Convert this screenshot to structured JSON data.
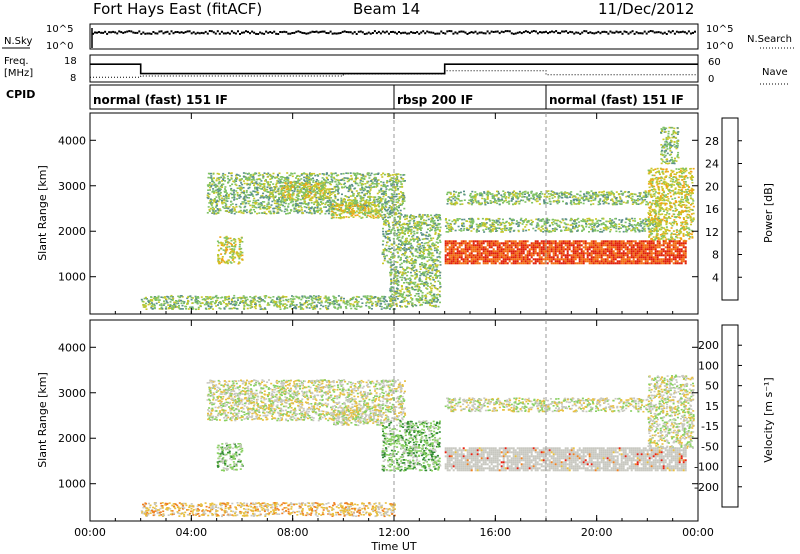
{
  "header": {
    "title": "Fort Hays East (fitACF)",
    "beam": "Beam 14",
    "date": "11/Dec/2012"
  },
  "status_panel": {
    "left_labels": {
      "nsky": "N.Sky",
      "freq_line1": "Freq.",
      "freq_line2": "[MHz]",
      "cpid": "CPID"
    },
    "right_labels": {
      "nsearch": "N.Search",
      "nave": "Nave"
    },
    "nsky_ticks": [
      "10^5",
      "10^0"
    ],
    "nsearch_ticks": [
      "10^5",
      "10^0"
    ],
    "freq_ticks": [
      "18",
      "8"
    ],
    "nave_ticks": [
      "60",
      "0"
    ],
    "cpid_segments": [
      {
        "label": "normal (fast) 151 IF",
        "start_hour": 0,
        "end_hour": 12
      },
      {
        "label": "rbsp 200 IF",
        "start_hour": 12,
        "end_hour": 18
      },
      {
        "label": "normal (fast) 151 IF",
        "start_hour": 18,
        "end_hour": 24
      }
    ],
    "frequency_MHz": [
      {
        "start_hour": 0,
        "end_hour": 2,
        "value": 15
      },
      {
        "start_hour": 2,
        "end_hour": 14,
        "value": 10.5
      },
      {
        "start_hour": 14,
        "end_hour": 24,
        "value": 15
      }
    ],
    "nave": [
      {
        "start_hour": 0,
        "end_hour": 2,
        "value": 12
      },
      {
        "start_hour": 2,
        "end_hour": 10,
        "value": 15
      },
      {
        "start_hour": 10,
        "end_hour": 14,
        "value": 20
      },
      {
        "start_hour": 14,
        "end_hour": 18,
        "value": 28
      },
      {
        "start_hour": 18,
        "end_hour": 24,
        "value": 18
      }
    ]
  },
  "colors": {
    "power_scale": [
      "#1212cc",
      "#3a55a8",
      "#5a8f8a",
      "#7fc265",
      "#c8c82a",
      "#f2a316",
      "#f26a10",
      "#e02008"
    ],
    "velocity_scale": [
      "#2020aa",
      "#3c6aa0",
      "#2f8a2f",
      "#88d060",
      "#c8c8c0",
      "#e8c040",
      "#f08020",
      "#e82010"
    ],
    "velocity_background": "#c8c8c0"
  },
  "chart_data": [
    {
      "type": "heatmap",
      "name": "power",
      "ylabel": "Slant Range [km]",
      "xlabel": "Time UT",
      "x_ticks": [
        "00:00",
        "04:00",
        "08:00",
        "12:00",
        "16:00",
        "20:00",
        "00:00"
      ],
      "y_ticks": [
        "1000",
        "2000",
        "3000",
        "4000"
      ],
      "xlim_hours": [
        0,
        24
      ],
      "ylim_km": [
        180,
        4600
      ],
      "colorbar_label": "Power [dB]",
      "colorbar_ticks": [
        "28",
        "24",
        "20",
        "16",
        "12",
        "8",
        "4"
      ],
      "colorbar_range": [
        0,
        32
      ],
      "scatter_regions": [
        {
          "t0": 4.6,
          "t1": 12.4,
          "r0": 2400,
          "r1": 3300,
          "level": 3
        },
        {
          "t0": 5.0,
          "t1": 6.0,
          "r0": 1300,
          "r1": 1900,
          "level": 4
        },
        {
          "t0": 7.5,
          "t1": 9.5,
          "r0": 2700,
          "r1": 3100,
          "level": 4
        },
        {
          "t0": 9.5,
          "t1": 11.5,
          "r0": 2300,
          "r1": 2700,
          "level": 4
        },
        {
          "t0": 11.5,
          "t1": 13.8,
          "r0": 1300,
          "r1": 2400,
          "level": 3
        },
        {
          "t0": 11.8,
          "t1": 13.8,
          "r0": 350,
          "r1": 1300,
          "level": 3
        },
        {
          "t0": 2.0,
          "t1": 12.0,
          "r0": 300,
          "r1": 600,
          "level": 3
        },
        {
          "t0": 14.0,
          "t1": 22.0,
          "r0": 2600,
          "r1": 2900,
          "level": 3
        },
        {
          "t0": 14.0,
          "t1": 22.5,
          "r0": 2000,
          "r1": 2300,
          "level": 3
        },
        {
          "t0": 22.0,
          "t1": 23.8,
          "r0": 1800,
          "r1": 3400,
          "level": 4
        },
        {
          "t0": 22.5,
          "t1": 23.2,
          "r0": 3500,
          "r1": 4300,
          "level": 3
        }
      ],
      "strong_echo": {
        "t0": 14.0,
        "t1": 23.5,
        "r0": 1300,
        "r1": 1800,
        "level": 7
      }
    },
    {
      "type": "heatmap",
      "name": "velocity",
      "ylabel": "Slant Range [km]",
      "xlabel": "Time UT",
      "x_ticks": [
        "00:00",
        "04:00",
        "08:00",
        "12:00",
        "16:00",
        "20:00",
        "00:00"
      ],
      "y_ticks": [
        "1000",
        "2000",
        "3000",
        "4000"
      ],
      "xlim_hours": [
        0,
        24
      ],
      "ylim_km": [
        180,
        4600
      ],
      "colorbar_label": "Velocity [m s⁻¹]",
      "colorbar_ticks": [
        "200",
        "100",
        "50",
        "15",
        "-15",
        "-50",
        "-100",
        "-200"
      ],
      "colorbar_range": [
        -250,
        250
      ],
      "scatter_regions": [
        {
          "t0": 4.6,
          "t1": 12.4,
          "r0": 2400,
          "r1": 3300,
          "level": 4
        },
        {
          "t0": 5.0,
          "t1": 6.0,
          "r0": 1300,
          "r1": 1900,
          "level": 3
        },
        {
          "t0": 9.5,
          "t1": 11.5,
          "r0": 2300,
          "r1": 2700,
          "level": 4
        },
        {
          "t0": 11.5,
          "t1": 13.8,
          "r0": 1300,
          "r1": 2400,
          "level": 3
        },
        {
          "t0": 2.0,
          "t1": 12.0,
          "r0": 300,
          "r1": 600,
          "level": 5
        },
        {
          "t0": 14.0,
          "t1": 22.0,
          "r0": 2600,
          "r1": 2900,
          "level": 4
        },
        {
          "t0": 22.0,
          "t1": 23.8,
          "r0": 1800,
          "r1": 3400,
          "level": 4
        }
      ],
      "strong_echo": {
        "t0": 14.0,
        "t1": 23.5,
        "r0": 1300,
        "r1": 1800,
        "level": 4
      }
    }
  ]
}
